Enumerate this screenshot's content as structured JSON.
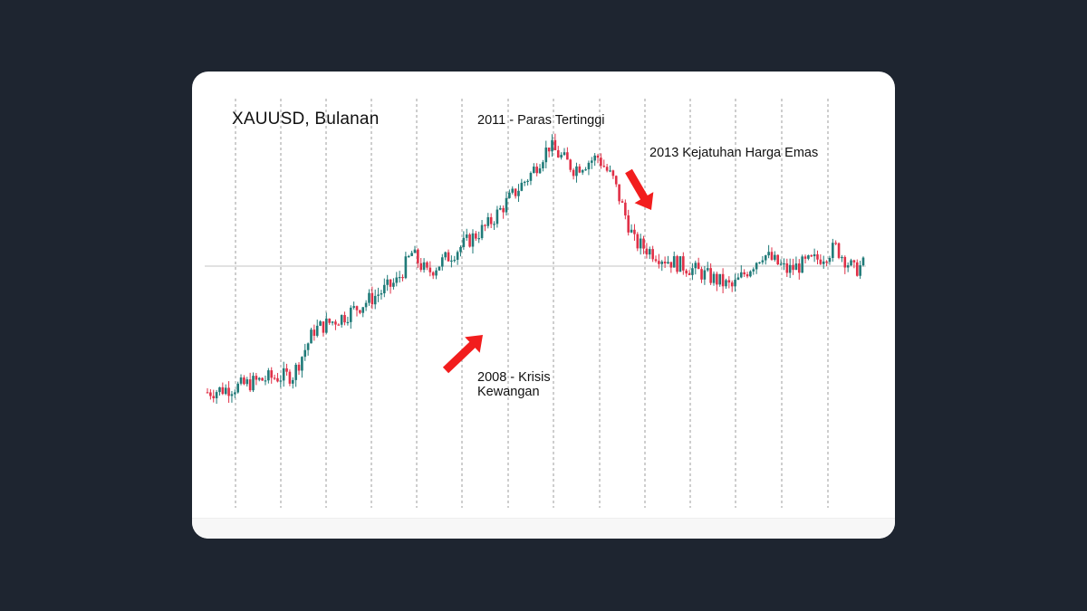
{
  "chart_data": {
    "type": "candlestick",
    "title": "XAUUSD, Bulanan",
    "annotations": [
      {
        "id": "peak",
        "text": "2011 - Paras Tertinggi"
      },
      {
        "id": "crash",
        "text": "2013 Kejatuhan Harga Emas"
      },
      {
        "id": "crisis",
        "line1": "2008 - Krisis",
        "line2": "Kewangan"
      }
    ],
    "keypoints": [
      [
        0,
        0.13
      ],
      [
        10,
        0.15
      ],
      [
        20,
        0.18
      ],
      [
        28,
        0.19
      ],
      [
        35,
        0.35
      ],
      [
        45,
        0.4
      ],
      [
        55,
        0.47
      ],
      [
        62,
        0.52
      ],
      [
        67,
        0.62
      ],
      [
        72,
        0.55
      ],
      [
        78,
        0.6
      ],
      [
        85,
        0.66
      ],
      [
        92,
        0.72
      ],
      [
        98,
        0.8
      ],
      [
        106,
        0.9
      ],
      [
        112,
        1.0
      ],
      [
        120,
        0.92
      ],
      [
        128,
        0.96
      ],
      [
        133,
        0.88
      ],
      [
        140,
        0.66
      ],
      [
        150,
        0.6
      ],
      [
        160,
        0.56
      ],
      [
        172,
        0.5
      ],
      [
        182,
        0.62
      ],
      [
        190,
        0.56
      ],
      [
        200,
        0.6
      ],
      [
        206,
        0.64
      ],
      [
        212,
        0.56
      ],
      [
        215,
        0.58
      ]
    ],
    "candle_count": 216,
    "colors": {
      "up": "#1f7a78",
      "down": "#e03047",
      "arrow": "#f21d1d",
      "grid": "#9e9e9e",
      "hline": "#c4c4c4"
    },
    "grid": "vertical-dashed"
  }
}
